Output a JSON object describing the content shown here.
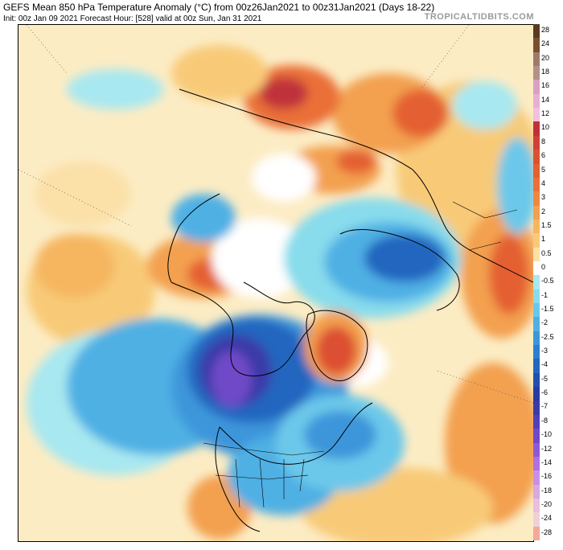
{
  "header": {
    "title": "GEFS Mean 850 hPa Temperature Anomaly (°C) from 00z26Jan2021 to 00z31Jan2021 (Days 18-22)",
    "subtitle": "Init: 00z Jan 09 2021   Forecast Hour: [528]   valid at 00z Sun, Jan 31 2021",
    "brand": "TROPICALTIDBITS.COM"
  },
  "colorbar": {
    "levels": [
      {
        "label": "28",
        "color": "#5a3a20"
      },
      {
        "label": "24",
        "color": "#7a4e30"
      },
      {
        "label": "20",
        "color": "#9e7a6a"
      },
      {
        "label": "18",
        "color": "#b39088"
      },
      {
        "label": "16",
        "color": "#d9a0c0"
      },
      {
        "label": "14",
        "color": "#e8b0d0"
      },
      {
        "label": "12",
        "color": "#f0c0dc"
      },
      {
        "label": "10",
        "color": "#c0303a"
      },
      {
        "label": "8",
        "color": "#d0403a"
      },
      {
        "label": "6",
        "color": "#dc5030"
      },
      {
        "label": "5",
        "color": "#e46030"
      },
      {
        "label": "4",
        "color": "#ea7038"
      },
      {
        "label": "3",
        "color": "#ef8640"
      },
      {
        "label": "2",
        "color": "#f3a050"
      },
      {
        "label": "1.5",
        "color": "#f6b660"
      },
      {
        "label": "1",
        "color": "#f8ca78"
      },
      {
        "label": "0.5",
        "color": "#fbe0a8"
      },
      {
        "label": "0",
        "color": "#ffffff"
      },
      {
        "label": "-0.5",
        "color": "#a8e8f0"
      },
      {
        "label": "-1",
        "color": "#88dcec"
      },
      {
        "label": "-1.5",
        "color": "#6cc8ea"
      },
      {
        "label": "-2",
        "color": "#50b0e4"
      },
      {
        "label": "-2.5",
        "color": "#3c96da"
      },
      {
        "label": "-3",
        "color": "#2e7ed0"
      },
      {
        "label": "-4",
        "color": "#2466c0"
      },
      {
        "label": "-5",
        "color": "#2050b0"
      },
      {
        "label": "-6",
        "color": "#283ca0"
      },
      {
        "label": "-7",
        "color": "#3a3aa8"
      },
      {
        "label": "-8",
        "color": "#5040b8"
      },
      {
        "label": "-10",
        "color": "#7048c8"
      },
      {
        "label": "-12",
        "color": "#9058d8"
      },
      {
        "label": "-14",
        "color": "#b070e0"
      },
      {
        "label": "-16",
        "color": "#c890e4"
      },
      {
        "label": "-18",
        "color": "#d8a8e0"
      },
      {
        "label": "-20",
        "color": "#e8c0dc"
      },
      {
        "label": "-24",
        "color": "#f0d0d8"
      },
      {
        "label": "-28",
        "color": "#f4a898"
      }
    ]
  },
  "map": {
    "colors": {
      "background": "#fcecc4",
      "warm_light": "#f8ca78",
      "warm_mid": "#f3a050",
      "warm_strong": "#e46030",
      "warm_very_strong": "#c0303a",
      "cold_light": "#a8e8f0",
      "cold_mid": "#50b0e4",
      "cold_strong": "#2466c0",
      "cold_very_strong": "#283ca0",
      "cold_extreme": "#7048c8",
      "coastline": "#000000"
    }
  }
}
